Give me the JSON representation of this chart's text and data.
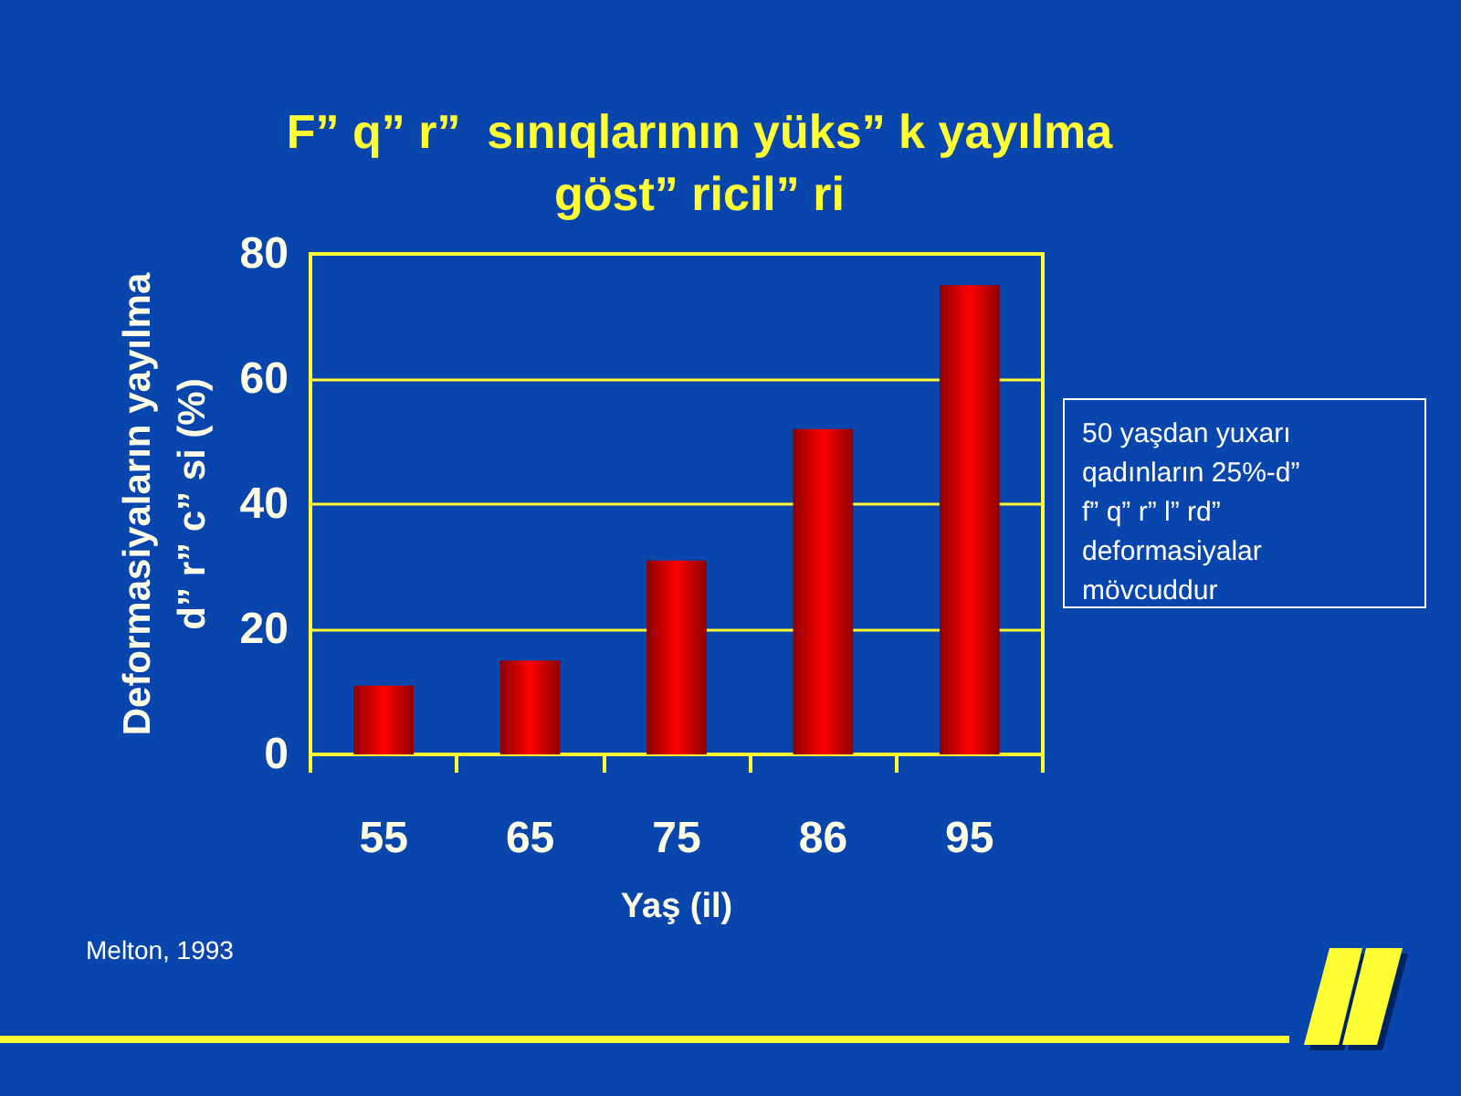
{
  "chart_data": {
    "type": "bar",
    "title": "F” q” r”  sınıqlarının yüks” k yayılma\ngöst” ricil” ri",
    "xlabel": "Yaş (il)",
    "ylabel": "Deformasiyaların yayılma\nd” r” c” si (%)",
    "categories": [
      "55",
      "65",
      "75",
      "86",
      "95"
    ],
    "values": [
      11,
      15,
      31,
      52,
      75
    ],
    "color": "#ff0000",
    "ylim": [
      0,
      80
    ],
    "yticks": [
      0,
      20,
      40,
      60,
      80
    ],
    "grid": "y",
    "annotations": [
      "50 yaşdan yuxarı\nqadınların 25%-d”\nf” q” r” l” rd”\ndeformasiyalar\nmövcuddur",
      "Melton, 1993"
    ]
  }
}
